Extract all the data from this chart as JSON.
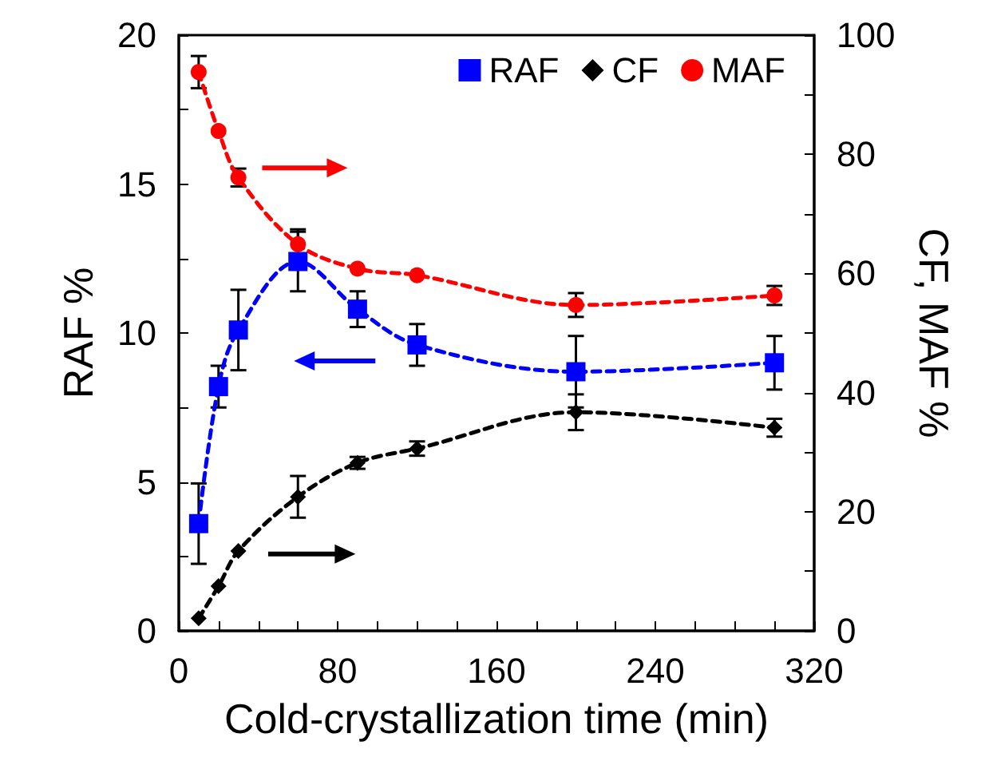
{
  "chart_data": {
    "type": "line",
    "xlabel": "Cold-crystallization time (min)",
    "ylabel": "RAF %",
    "y2label": "CF, MAF %",
    "x": [
      10,
      20,
      30,
      60,
      90,
      120,
      200,
      300
    ],
    "series": [
      {
        "name": "RAF",
        "color": "#0000ff",
        "marker": "square",
        "values": [
          3.6,
          8.2,
          10.1,
          12.4,
          10.8,
          9.6,
          8.7,
          9.0
        ],
        "errors": [
          1.35,
          0.7,
          1.35,
          1.0,
          0.6,
          0.7,
          1.2,
          0.9
        ]
      },
      {
        "name": "CF",
        "color": "#000000",
        "marker": "diamond",
        "axis": "y2",
        "values": [
          2.1,
          7.5,
          13.4,
          22.5,
          28.2,
          30.6,
          36.7,
          34.1
        ],
        "errors": [
          null,
          null,
          null,
          3.5,
          1.0,
          1.2,
          3.0,
          1.5
        ]
      },
      {
        "name": "MAF",
        "color": "#ff0000",
        "marker": "circle",
        "axis": "y2",
        "values": [
          93.8,
          83.9,
          76.1,
          64.9,
          60.8,
          59.7,
          54.7,
          56.3
        ],
        "errors": [
          2.7,
          null,
          1.5,
          2.5,
          null,
          null,
          2.0,
          1.6
        ]
      }
    ],
    "line_style": "dashed",
    "legend": "top right",
    "grid": false,
    "xlim": [
      0,
      320
    ],
    "xticks": [
      0,
      {
        "value": 20,
        "label": null
      },
      {
        "value": 40,
        "label": null
      },
      {
        "value": 60,
        "label": null
      },
      80,
      {
        "value": 100,
        "label": null
      },
      {
        "value": 120,
        "label": null
      },
      {
        "value": 140,
        "label": null
      },
      160,
      {
        "value": 180,
        "label": null
      },
      {
        "value": 200,
        "label": null
      },
      {
        "value": 220,
        "label": null
      },
      240,
      {
        "value": 260,
        "label": null
      },
      {
        "value": 280,
        "label": null
      },
      {
        "value": 300,
        "label": null
      },
      320
    ],
    "ylim": [
      0,
      20
    ],
    "yticks": [
      0,
      {
        "value": 2.5,
        "label": null
      },
      5,
      {
        "value": 7.5,
        "label": null
      },
      10,
      {
        "value": 12.5,
        "label": null
      },
      15,
      {
        "value": 17.5,
        "label": null
      },
      20
    ],
    "y2lim": [
      0,
      100
    ],
    "y2ticks": [
      0,
      {
        "value": 10,
        "label": null
      },
      20,
      {
        "value": 30,
        "label": null
      },
      40,
      {
        "value": 50,
        "label": null
      },
      60,
      {
        "value": 70,
        "label": null
      },
      80,
      {
        "value": 90,
        "label": null
      },
      100
    ]
  }
}
